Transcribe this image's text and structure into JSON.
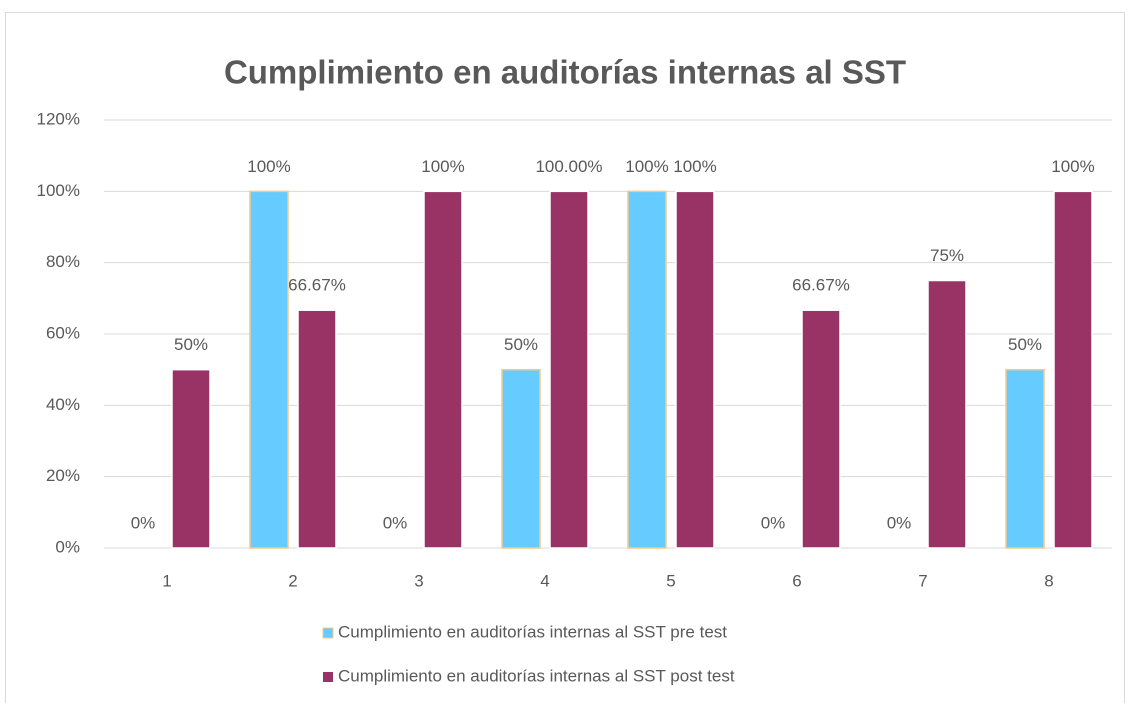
{
  "chart_data": {
    "type": "bar",
    "title": "Cumplimiento en auditorías internas al SST",
    "categories": [
      "1",
      "2",
      "3",
      "4",
      "5",
      "6",
      "7",
      "8"
    ],
    "series": [
      {
        "name": "Cumplimiento en auditorías internas al SST pre test",
        "color": "#66ccff",
        "values": [
          0,
          100,
          0,
          50,
          100,
          0,
          0,
          50
        ],
        "value_labels": [
          "0%",
          "100%",
          "0%",
          "50%",
          "100%",
          "0%",
          "0%",
          "50%"
        ]
      },
      {
        "name": "Cumplimiento en auditorías internas al SST post test",
        "color": "#993366",
        "values": [
          50,
          66.67,
          100,
          100,
          100,
          66.67,
          75,
          100
        ],
        "value_labels": [
          "50%",
          "66.67%",
          "100%",
          "100.00%",
          "100%",
          "66.67%",
          "75%",
          "100%"
        ]
      }
    ],
    "ylim": [
      0,
      120
    ],
    "yticks": [
      {
        "value": 0,
        "label": "0%"
      },
      {
        "value": 20,
        "label": "20%"
      },
      {
        "value": 40,
        "label": "40%"
      },
      {
        "value": 60,
        "label": "60%"
      },
      {
        "value": 80,
        "label": "80%"
      },
      {
        "value": 100,
        "label": "100%"
      },
      {
        "value": 120,
        "label": "120%"
      }
    ],
    "grid": true,
    "legend": "bottom"
  }
}
